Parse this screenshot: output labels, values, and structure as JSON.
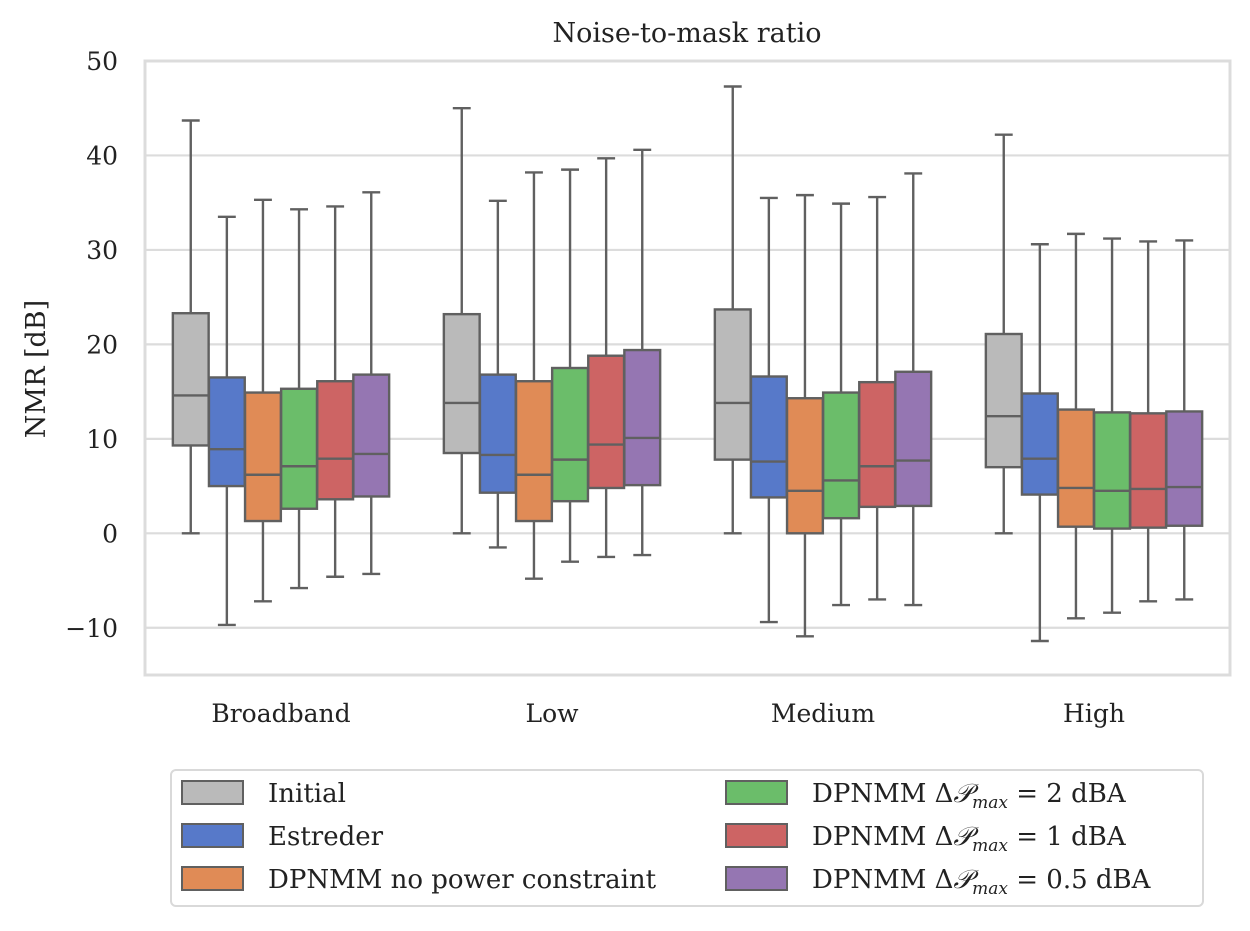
{
  "chart_data": {
    "type": "boxplot",
    "title": "Noise-to-mask ratio",
    "ylabel": "NMR [dB]",
    "xlabel": "",
    "ylim": [
      -15,
      50
    ],
    "yticks": [
      -10,
      0,
      10,
      20,
      30,
      40,
      50
    ],
    "ytick_labels": [
      "−10",
      "0",
      "10",
      "20",
      "30",
      "40",
      "50"
    ],
    "grid": "horizontal",
    "legend_position": "bottom",
    "categories": [
      "Broadband",
      "Low",
      "Medium",
      "High"
    ],
    "series": [
      {
        "name": "Initial",
        "legend_text": "Initial",
        "color": "#bababa",
        "boxes": [
          {
            "whislo": 0.0,
            "q1": 9.3,
            "med": 14.6,
            "q3": 23.3,
            "whishi": 43.7
          },
          {
            "whislo": 0.0,
            "q1": 8.5,
            "med": 13.8,
            "q3": 23.2,
            "whishi": 45.0
          },
          {
            "whislo": 0.0,
            "q1": 7.8,
            "med": 13.8,
            "q3": 23.7,
            "whishi": 47.3
          },
          {
            "whislo": 0.0,
            "q1": 7.0,
            "med": 12.4,
            "q3": 21.1,
            "whishi": 42.2
          }
        ]
      },
      {
        "name": "Estreder",
        "legend_text": "Estreder",
        "color": "#5779c9",
        "boxes": [
          {
            "whislo": -9.7,
            "q1": 5.0,
            "med": 8.9,
            "q3": 16.5,
            "whishi": 33.5
          },
          {
            "whislo": -1.5,
            "q1": 4.3,
            "med": 8.3,
            "q3": 16.8,
            "whishi": 35.2
          },
          {
            "whislo": -9.4,
            "q1": 3.8,
            "med": 7.6,
            "q3": 16.6,
            "whishi": 35.5
          },
          {
            "whislo": -11.4,
            "q1": 4.1,
            "med": 7.9,
            "q3": 14.8,
            "whishi": 30.6
          }
        ]
      },
      {
        "name": "DPNMM no power constraint",
        "legend_text": "DPNMM no power constraint",
        "color": "#e08b56",
        "boxes": [
          {
            "whislo": -7.2,
            "q1": 1.3,
            "med": 6.2,
            "q3": 14.9,
            "whishi": 35.3
          },
          {
            "whislo": -4.8,
            "q1": 1.3,
            "med": 6.2,
            "q3": 16.1,
            "whishi": 38.2
          },
          {
            "whislo": -10.9,
            "q1": 0.0,
            "med": 4.5,
            "q3": 14.3,
            "whishi": 35.8
          },
          {
            "whislo": -9.0,
            "q1": 0.7,
            "med": 4.8,
            "q3": 13.1,
            "whishi": 31.7
          }
        ]
      },
      {
        "name": "DPNMM 2 dBA",
        "legend_prefix": "DPNMM",
        "legend_value": "2 dBA",
        "color": "#6bbd6a",
        "boxes": [
          {
            "whislo": -5.8,
            "q1": 2.6,
            "med": 7.1,
            "q3": 15.3,
            "whishi": 34.3
          },
          {
            "whislo": -3.0,
            "q1": 3.4,
            "med": 7.8,
            "q3": 17.5,
            "whishi": 38.5
          },
          {
            "whislo": -7.6,
            "q1": 1.6,
            "med": 5.6,
            "q3": 14.9,
            "whishi": 34.9
          },
          {
            "whislo": -8.4,
            "q1": 0.5,
            "med": 4.5,
            "q3": 12.8,
            "whishi": 31.2
          }
        ]
      },
      {
        "name": "DPNMM 1 dBA",
        "legend_prefix": "DPNMM",
        "legend_value": "1 dBA",
        "color": "#cd6464",
        "boxes": [
          {
            "whislo": -4.6,
            "q1": 3.6,
            "med": 7.9,
            "q3": 16.1,
            "whishi": 34.6
          },
          {
            "whislo": -2.5,
            "q1": 4.8,
            "med": 9.4,
            "q3": 18.8,
            "whishi": 39.7
          },
          {
            "whislo": -7.0,
            "q1": 2.8,
            "med": 7.1,
            "q3": 16.0,
            "whishi": 35.6
          },
          {
            "whislo": -7.2,
            "q1": 0.6,
            "med": 4.7,
            "q3": 12.7,
            "whishi": 30.9
          }
        ]
      },
      {
        "name": "DPNMM 0.5 dBA",
        "legend_prefix": "DPNMM",
        "legend_value": "0.5 dBA",
        "color": "#9576b2",
        "boxes": [
          {
            "whislo": -4.3,
            "q1": 3.9,
            "med": 8.4,
            "q3": 16.8,
            "whishi": 36.1
          },
          {
            "whislo": -2.3,
            "q1": 5.1,
            "med": 10.1,
            "q3": 19.4,
            "whishi": 40.6
          },
          {
            "whislo": -7.6,
            "q1": 2.9,
            "med": 7.7,
            "q3": 17.1,
            "whishi": 38.1
          },
          {
            "whislo": -7.0,
            "q1": 0.8,
            "med": 4.9,
            "q3": 12.9,
            "whishi": 31.0
          }
        ]
      }
    ],
    "legend_math": {
      "delta": "Δ",
      "symbol": "𝒫",
      "subscript": "max",
      "equals": "="
    }
  },
  "colors": {
    "box_edge": "#606060",
    "grid": "#dcdcdc",
    "frame": "#dcdcdc",
    "legend_border": "#d9d9d9"
  }
}
